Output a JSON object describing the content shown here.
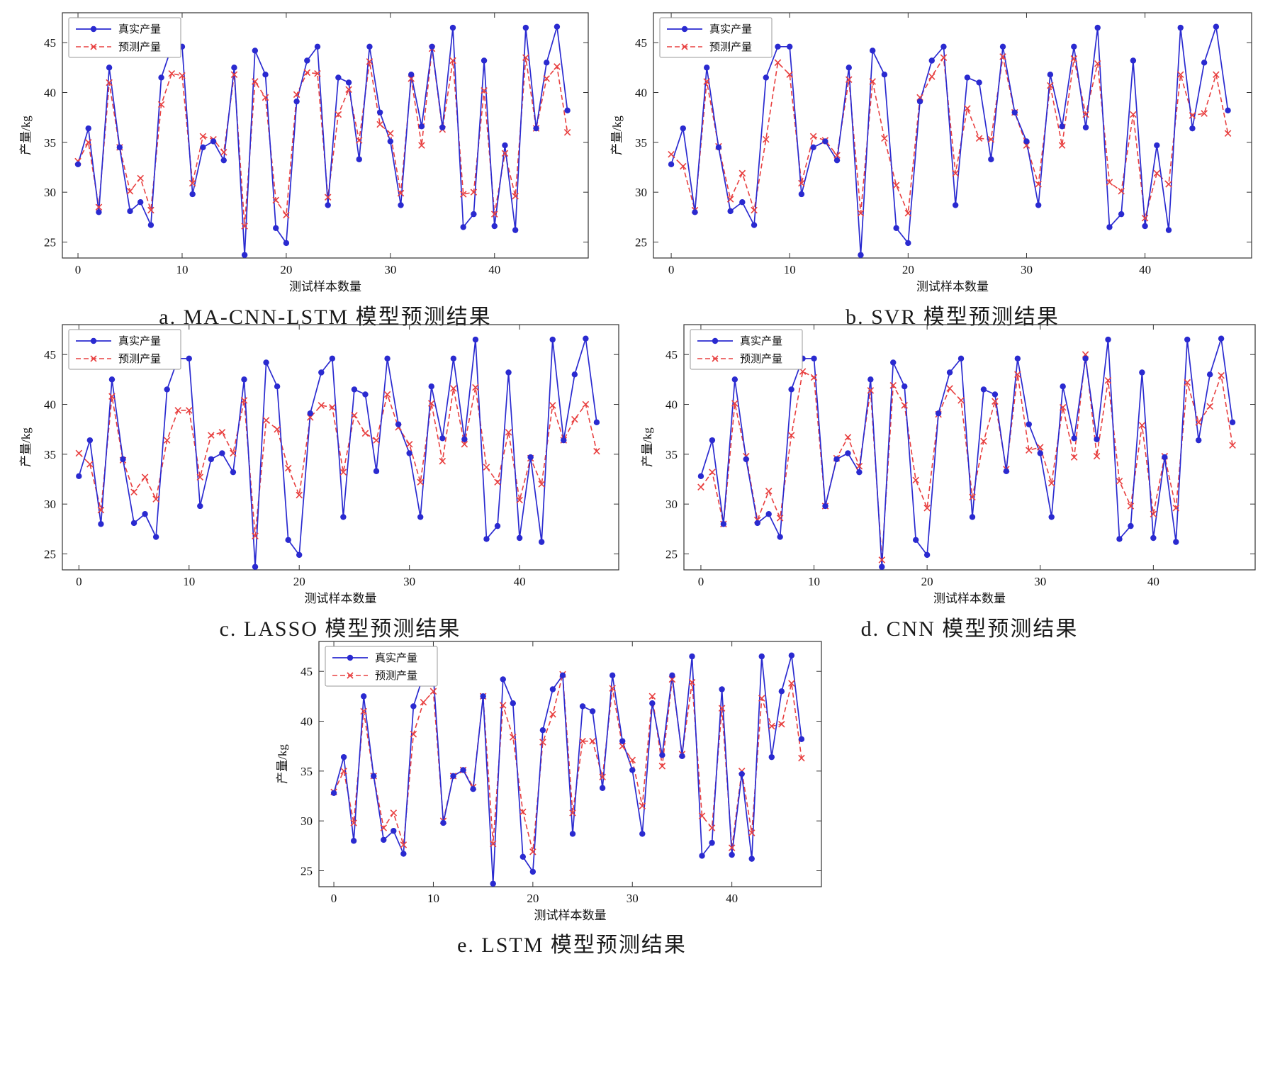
{
  "page": {
    "background": "#ffffff"
  },
  "chart_data": {
    "type": "line",
    "xlabel": "测试样本数量",
    "ylabel": "产量/kg",
    "xlim": [
      -1.5,
      49
    ],
    "ylim": [
      23.4,
      48
    ],
    "xticks": [
      0,
      10,
      20,
      30,
      40
    ],
    "yticks": [
      25,
      30,
      35,
      40,
      45
    ],
    "grid": false,
    "legend": {
      "true_label": "真实产量",
      "pred_label": "预测产量",
      "position": "upper-left"
    },
    "colors": {
      "true": "#2a2ad0",
      "pred": "#e84040",
      "spine": "#333333"
    },
    "x": [
      0,
      1,
      2,
      3,
      4,
      5,
      6,
      7,
      8,
      9,
      10,
      11,
      12,
      13,
      14,
      15,
      16,
      17,
      18,
      19,
      20,
      21,
      22,
      23,
      24,
      25,
      26,
      27,
      28,
      29,
      30,
      31,
      32,
      33,
      34,
      35,
      36,
      37,
      38,
      39,
      40,
      41,
      42,
      43,
      44,
      45,
      46,
      47
    ],
    "true_series": [
      32.8,
      36.4,
      28.0,
      42.5,
      34.5,
      28.1,
      29.0,
      26.7,
      41.5,
      44.6,
      44.6,
      29.8,
      34.5,
      35.1,
      33.2,
      42.5,
      23.7,
      44.2,
      41.8,
      26.4,
      24.9,
      39.1,
      43.2,
      44.6,
      28.7,
      41.5,
      41.0,
      33.3,
      44.6,
      38.0,
      35.1,
      28.7,
      41.8,
      36.6,
      44.6,
      36.5,
      46.5,
      26.5,
      27.8,
      43.2,
      26.6,
      34.7,
      26.2,
      46.5,
      36.4,
      43.0,
      46.6,
      38.2
    ],
    "charts": [
      {
        "id": "a",
        "model": "MA-CNN-LSTM",
        "caption": "a. MA-CNN-LSTM 模型预测结果",
        "pred": [
          33.1,
          35.0,
          28.5,
          41.0,
          34.5,
          30.1,
          31.4,
          28.2,
          38.8,
          41.9,
          41.7,
          30.9,
          35.6,
          35.3,
          34.0,
          41.8,
          26.6,
          41.1,
          39.5,
          29.2,
          27.7,
          39.8,
          42.0,
          41.9,
          29.5,
          37.8,
          40.3,
          35.2,
          43.1,
          36.8,
          35.9,
          29.9,
          41.4,
          34.7,
          44.4,
          36.3,
          43.2,
          29.8,
          30.0,
          40.2,
          27.8,
          33.9,
          29.6,
          43.5,
          36.4,
          41.4,
          42.6,
          36.0
        ]
      },
      {
        "id": "b",
        "model": "SVR",
        "caption": "b. SVR 模型预测结果",
        "pred": [
          33.8,
          32.6,
          28.2,
          41.1,
          34.6,
          29.3,
          31.9,
          28.2,
          35.3,
          43.0,
          41.8,
          30.9,
          35.6,
          35.2,
          33.7,
          41.3,
          27.9,
          41.1,
          35.4,
          30.7,
          27.9,
          39.5,
          41.6,
          43.5,
          31.9,
          38.4,
          35.4,
          35.3,
          43.6,
          38.0,
          34.7,
          30.8,
          40.7,
          34.7,
          43.4,
          37.8,
          42.9,
          31.0,
          30.1,
          37.8,
          27.4,
          31.9,
          30.8,
          41.8,
          37.7,
          37.9,
          41.8,
          35.9
        ]
      },
      {
        "id": "c",
        "model": "LASSO",
        "caption": "c. LASSO 模型预测结果",
        "pred": [
          35.1,
          34.0,
          29.4,
          40.8,
          34.4,
          31.2,
          32.7,
          30.5,
          36.4,
          39.4,
          39.4,
          32.7,
          36.9,
          37.2,
          35.1,
          40.4,
          26.8,
          38.4,
          37.5,
          33.6,
          30.9,
          38.7,
          39.9,
          39.7,
          33.2,
          38.9,
          37.1,
          36.4,
          41.0,
          37.7,
          36.0,
          32.2,
          40.1,
          34.3,
          41.6,
          36.0,
          41.7,
          33.7,
          32.2,
          37.2,
          30.4,
          34.6,
          32.0,
          39.9,
          36.4,
          38.5,
          40.0,
          35.3
        ]
      },
      {
        "id": "d",
        "model": "CNN",
        "caption": "d. CNN 模型预测结果",
        "pred": [
          31.7,
          33.2,
          28.0,
          40.1,
          34.8,
          28.4,
          31.3,
          28.6,
          36.9,
          43.3,
          42.7,
          29.8,
          34.6,
          36.7,
          33.8,
          41.4,
          24.4,
          41.9,
          39.9,
          32.4,
          29.6,
          39.0,
          41.6,
          40.4,
          30.7,
          36.3,
          40.3,
          33.5,
          43.0,
          35.4,
          35.7,
          32.1,
          39.7,
          34.7,
          45.0,
          34.8,
          42.4,
          32.3,
          29.8,
          37.9,
          29.0,
          34.8,
          29.6,
          42.2,
          38.2,
          39.8,
          42.9,
          35.9
        ]
      },
      {
        "id": "e",
        "model": "LSTM",
        "caption": "e. LSTM 模型预测结果",
        "pred": [
          32.9,
          35.0,
          29.8,
          41.0,
          34.5,
          29.3,
          30.8,
          27.6,
          38.7,
          41.9,
          43.0,
          30.0,
          34.5,
          35.1,
          33.4,
          42.5,
          27.7,
          41.6,
          38.4,
          30.9,
          26.9,
          37.9,
          40.7,
          44.7,
          30.8,
          38.0,
          38.0,
          34.4,
          43.3,
          37.5,
          36.1,
          31.5,
          42.5,
          35.5,
          44.2,
          36.7,
          43.9,
          30.5,
          29.3,
          41.3,
          27.3,
          35.0,
          28.8,
          42.3,
          39.5,
          39.7,
          43.8,
          36.3
        ]
      }
    ]
  }
}
